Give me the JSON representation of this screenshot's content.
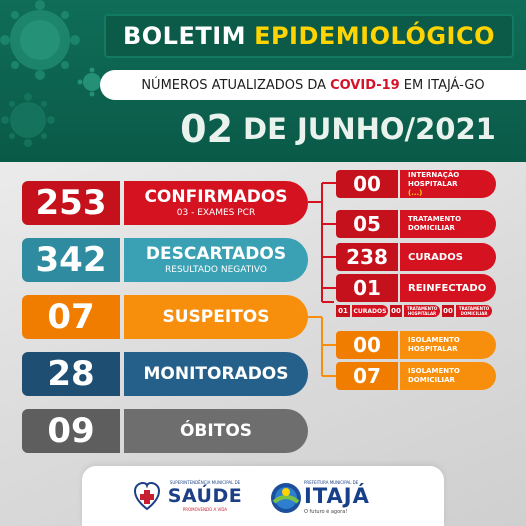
{
  "header": {
    "title_white": "BOLETIM",
    "title_yellow": "EPIDEMIOLÓGICO",
    "subtitle_before": "NÚMEROS ATUALIZADOS DA",
    "subtitle_highlight": "COVID-19",
    "subtitle_after": "EM ITAJÁ-GO",
    "date_day": "02",
    "date_rest": "DE JUNHO/2021"
  },
  "colors": {
    "header_green": "#0a5a48",
    "title_yellow": "#ffd400",
    "confirmados_red": "#d5121f",
    "descartados_teal": "#3aa0b3",
    "suspeitos_orange": "#f78f0d",
    "monitorados_navy": "#25608a",
    "obitos_gray": "#6e6e6e"
  },
  "stats": {
    "confirmados": {
      "value": "253",
      "label": "CONFIRMADOS",
      "sub": "03 - EXAMES PCR"
    },
    "descartados": {
      "value": "342",
      "label": "DESCARTADOS",
      "sub": "RESULTADO NEGATIVO"
    },
    "suspeitos": {
      "value": "07",
      "label": "SUSPEITOS"
    },
    "monitorados": {
      "value": "28",
      "label": "MONITORADOS"
    },
    "obitos": {
      "value": "09",
      "label": "ÓBITOS"
    }
  },
  "confirmados_detail": {
    "internacao": {
      "value": "00",
      "label_line1": "INTERNAÇÃO",
      "label_line2": "HOSPITALAR",
      "label_line3": "(...)"
    },
    "domiciliar": {
      "value": "05",
      "label_line1": "TRATAMENTO",
      "label_line2": "DOMICILIAR"
    },
    "curados": {
      "value": "238",
      "label": "CURADOS"
    },
    "reinfectado": {
      "value": "01",
      "label": "REINFECTADO"
    },
    "reinfectado_breakdown": {
      "curados_value": "01",
      "curados_label": "CURADOS",
      "hosp_value": "00",
      "hosp_label_line1": "TRATAMENTO",
      "hosp_label_line2": "HOSPITALAR",
      "dom_value": "00",
      "dom_label_line1": "TRATAMENTO",
      "dom_label_line2": "DOMICILIAR"
    }
  },
  "suspeitos_detail": {
    "hospitalar": {
      "value": "00",
      "label_line1": "ISOLAMENTO",
      "label_line2": "HOSPITALAR"
    },
    "domiciliar": {
      "value": "07",
      "label_line1": "ISOLAMENTO",
      "label_line2": "DOMICILIAR"
    }
  },
  "footer": {
    "saude_small": "SUPERINTENDÊNCIA MUNICIPAL DE",
    "saude_big": "SAÚDE",
    "saude_tag": "PROMOVENDO A VIDA",
    "itaja_small": "PREFEITURA MUNICIPAL DE",
    "itaja_big": "ITAJÁ",
    "itaja_slogan": "O futuro é agora!"
  }
}
